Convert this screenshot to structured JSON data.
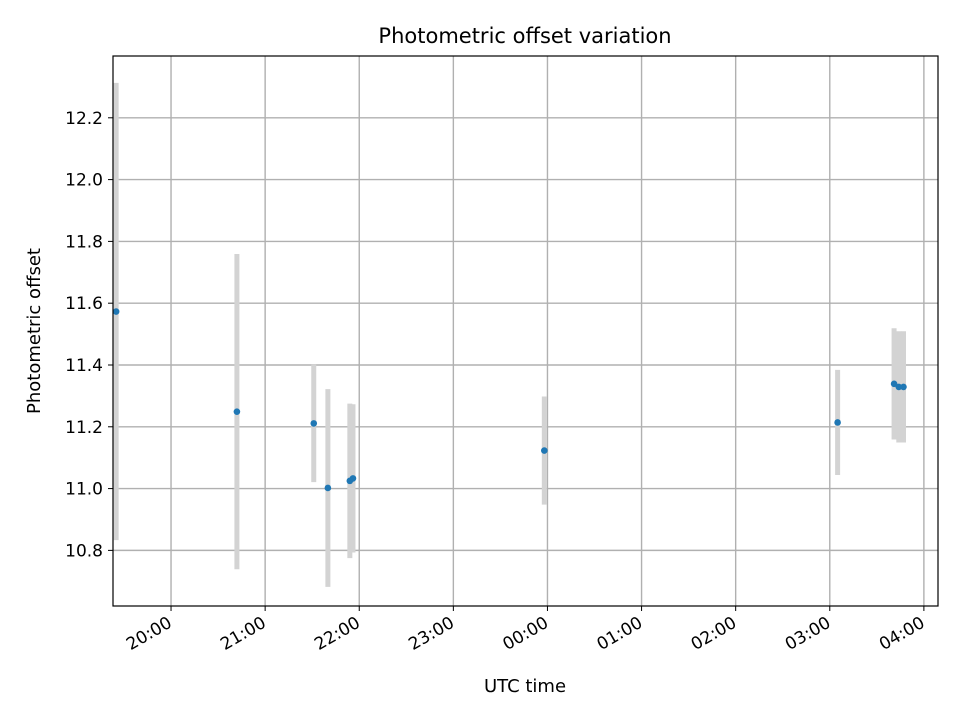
{
  "chart_data": {
    "type": "scatter",
    "title": "Photometric offset variation",
    "xlabel": "UTC time",
    "ylabel": "Photometric offset",
    "x_axis": "time",
    "xlim": [
      "19:23",
      "04:09"
    ],
    "ylim": [
      10.62,
      12.4
    ],
    "x_ticks": [
      "20:00",
      "21:00",
      "22:00",
      "23:00",
      "00:00",
      "01:00",
      "02:00",
      "03:00",
      "04:00"
    ],
    "y_ticks": [
      10.8,
      11.0,
      11.2,
      11.4,
      11.6,
      11.8,
      12.0,
      12.2
    ],
    "grid": true,
    "marker_color": "#1f77b4",
    "errorbar_color": "#d3d3d3",
    "series": [
      {
        "points": [
          {
            "x": "19:25",
            "y": 11.573,
            "yerr": 0.74
          },
          {
            "x": "20:42",
            "y": 11.249,
            "yerr": 0.51
          },
          {
            "x": "21:31",
            "y": 11.211,
            "yerr": 0.19
          },
          {
            "x": "21:40",
            "y": 11.002,
            "yerr": 0.32
          },
          {
            "x": "21:54",
            "y": 11.025,
            "yerr": 0.25
          },
          {
            "x": "21:56",
            "y": 11.033,
            "yerr": 0.24
          },
          {
            "x": "23:58",
            "y": 11.123,
            "yerr": 0.175
          },
          {
            "x": "03:05",
            "y": 11.214,
            "yerr": 0.17
          },
          {
            "x": "03:41",
            "y": 11.339,
            "yerr": 0.18
          },
          {
            "x": "03:44",
            "y": 11.329,
            "yerr": 0.18
          },
          {
            "x": "03:47",
            "y": 11.329,
            "yerr": 0.18
          }
        ]
      }
    ]
  }
}
